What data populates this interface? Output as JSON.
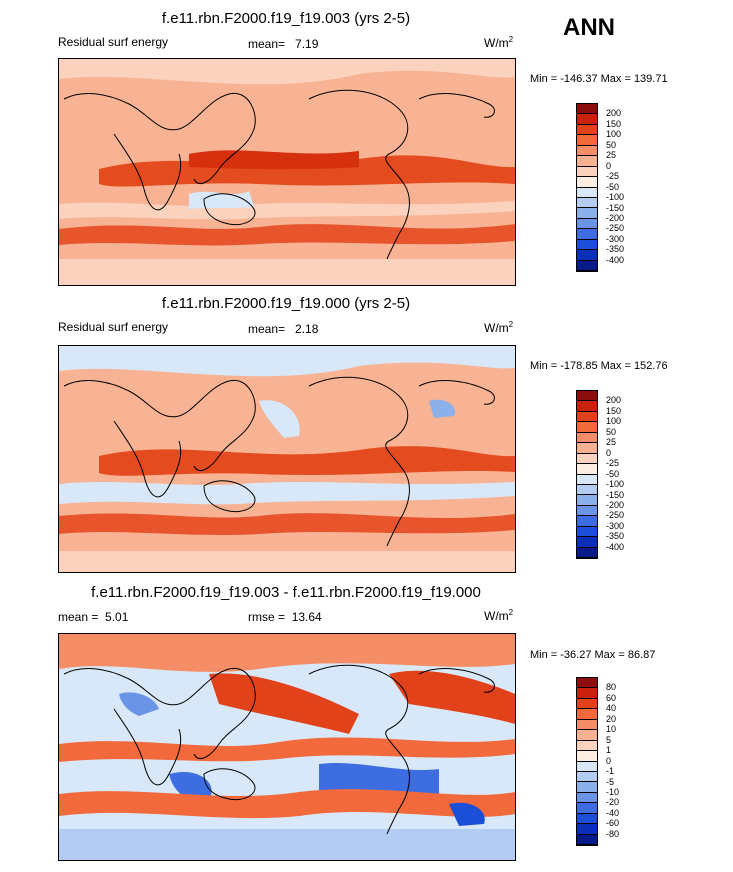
{
  "season": "ANN",
  "panels": [
    {
      "id": "test",
      "title": "f.e11.rbn.F2000.f19_f19.003 (yrs 2-5)",
      "left_label": "Residual surf energy",
      "stat_label": "mean=",
      "stat_value": "7.19",
      "units": "W/m",
      "units_exp": "2",
      "minmax": "Min = -146.37 Max = 139.71",
      "colorbar_labels": [
        "200",
        "150",
        "100",
        "50",
        "25",
        "0",
        "-25",
        "-50",
        "-100",
        "-150",
        "-200",
        "-250",
        "-300",
        "-350",
        "-400"
      ],
      "colorbar_colors": [
        "#8b0d0d",
        "#c8220f",
        "#e2421a",
        "#f26a3c",
        "#f58e66",
        "#f8b191",
        "#fbd2bd",
        "#fdeee4",
        "#d8e8f8",
        "#b3cdf2",
        "#8cb0ea",
        "#6a94e6",
        "#3d6de0",
        "#1c4fd8",
        "#0a2fb8",
        "#061a8a"
      ]
    },
    {
      "id": "control",
      "title": "f.e11.rbn.F2000.f19_f19.000 (yrs 2-5)",
      "left_label": "Residual surf energy",
      "stat_label": "mean=",
      "stat_value": "2.18",
      "units": "W/m",
      "units_exp": "2",
      "minmax": "Min = -178.85 Max = 152.76",
      "colorbar_labels": [
        "200",
        "150",
        "100",
        "50",
        "25",
        "0",
        "-25",
        "-50",
        "-100",
        "-150",
        "-200",
        "-250",
        "-300",
        "-350",
        "-400"
      ],
      "colorbar_colors": [
        "#8b0d0d",
        "#c8220f",
        "#e2421a",
        "#f26a3c",
        "#f58e66",
        "#f8b191",
        "#fbd2bd",
        "#fdeee4",
        "#d8e8f8",
        "#b3cdf2",
        "#8cb0ea",
        "#6a94e6",
        "#3d6de0",
        "#1c4fd8",
        "#0a2fb8",
        "#061a8a"
      ]
    },
    {
      "id": "diff",
      "title": "f.e11.rbn.F2000.f19_f19.003 - f.e11.rbn.F2000.f19_f19.000",
      "left_label": "mean =",
      "left_value": "5.01",
      "stat_label": "rmse =",
      "stat_value": "13.64",
      "units": "W/m",
      "units_exp": "2",
      "minmax": "Min = -36.27 Max =  86.87",
      "colorbar_labels": [
        "80",
        "60",
        "40",
        "20",
        "10",
        "5",
        "1",
        "0",
        "-1",
        "-5",
        "-10",
        "-20",
        "-40",
        "-60",
        "-80"
      ],
      "colorbar_colors": [
        "#8b0d0d",
        "#c8220f",
        "#e2421a",
        "#f26a3c",
        "#f58e66",
        "#f8b191",
        "#fbd2bd",
        "#fdeee4",
        "#d8e8f8",
        "#b3cdf2",
        "#8cb0ea",
        "#6a94e6",
        "#3d6de0",
        "#1c4fd8",
        "#0a2fb8",
        "#061a8a"
      ]
    }
  ]
}
